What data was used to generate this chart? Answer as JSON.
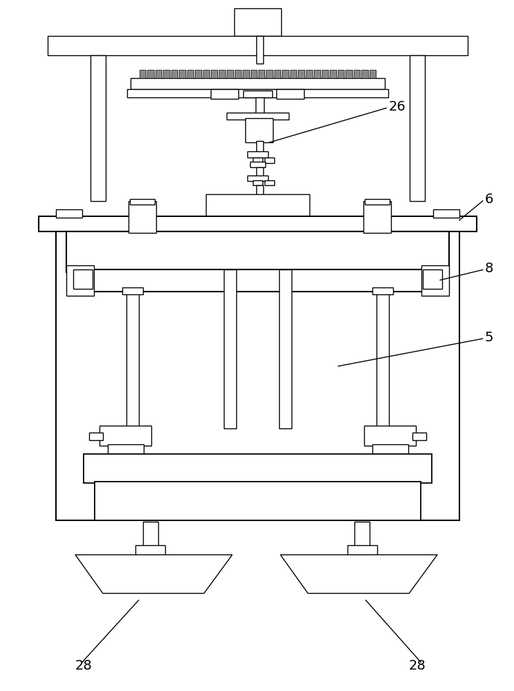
{
  "bg_color": "#ffffff",
  "lc": "#000000",
  "lw": 1.0,
  "fig_w": 7.44,
  "fig_h": 10.0,
  "dpi": 100
}
